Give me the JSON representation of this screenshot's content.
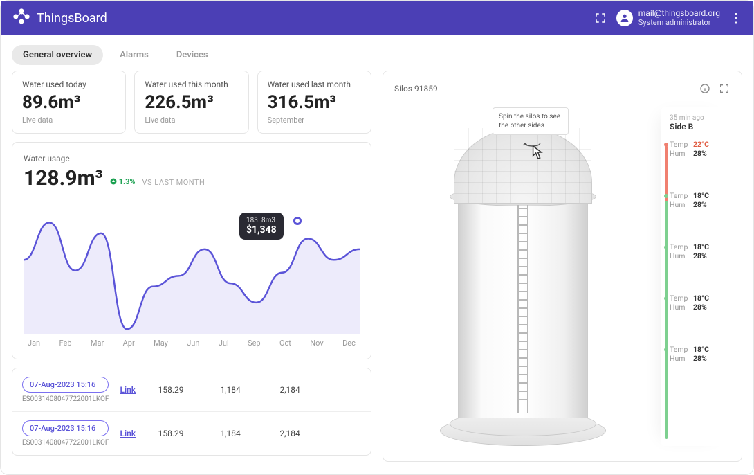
{
  "header": {
    "brand": "ThingsBoard",
    "email": "mail@thingsboard.org",
    "role": "System administrator"
  },
  "tabs": [
    {
      "label": "General overview",
      "active": true
    },
    {
      "label": "Alarms",
      "active": false
    },
    {
      "label": "Devices",
      "active": false
    }
  ],
  "stats": [
    {
      "label": "Water used today",
      "value": "89.6",
      "unit": "m³",
      "sub": "Live data"
    },
    {
      "label": "Water used this month",
      "value": "226.5",
      "unit": "m³",
      "sub": "Live data"
    },
    {
      "label": "Water used last month",
      "value": "316.5",
      "unit": "m³",
      "sub": "September"
    }
  ],
  "chart": {
    "title": "Water usage",
    "value": "128.9",
    "unit": "m³",
    "delta": "1.3%",
    "delta_dir": "up",
    "vs": "VS LAST MONTH",
    "line_color": "#5b54d8",
    "fill_color": "#edebfb",
    "months": [
      "Jan",
      "Feb",
      "Mar",
      "Apr",
      "May",
      "Jun",
      "Jul",
      "Sep",
      "Oct",
      "Nov",
      "Dec"
    ],
    "series_y": [
      110,
      145,
      100,
      135,
      45,
      85,
      95,
      120,
      88,
      70,
      98,
      130,
      110,
      120
    ],
    "tooltip": {
      "l1": "183. 8m3",
      "l2": "$1,348"
    },
    "ylim": [
      40,
      170
    ]
  },
  "rows": [
    {
      "date": "07-Aug-2023 15:16",
      "id": "ES0031408047722001LKOF",
      "link": "Link",
      "c1": "158.29",
      "c2": "1,184",
      "c3": "2,184"
    },
    {
      "date": "07-Aug-2023 15:16",
      "id": "ES0031408047722001LKOF",
      "link": "Link",
      "c1": "158.29",
      "c2": "1,184",
      "c3": "2,184"
    }
  ],
  "silo": {
    "title": "Silos 91859",
    "spin_tip": "Spin the silos to see the other sides",
    "panel_time": "35 min ago",
    "side": "Side B",
    "sensors": [
      {
        "state": "red",
        "temp": "22°C",
        "hum": "28%"
      },
      {
        "state": "green",
        "temp": "18°C",
        "hum": "28%"
      },
      {
        "state": "green",
        "temp": "18°C",
        "hum": "28%"
      },
      {
        "state": "green",
        "temp": "18°C",
        "hum": "28%"
      },
      {
        "state": "green",
        "temp": "18°C",
        "hum": "28%"
      }
    ],
    "labels": {
      "temp": "Temp",
      "hum": "Hum"
    }
  },
  "colors": {
    "header_bg": "#4b3fb5",
    "accent": "#5b54d8",
    "success": "#1aa050",
    "red": "#f08070",
    "green": "#7ed090"
  }
}
